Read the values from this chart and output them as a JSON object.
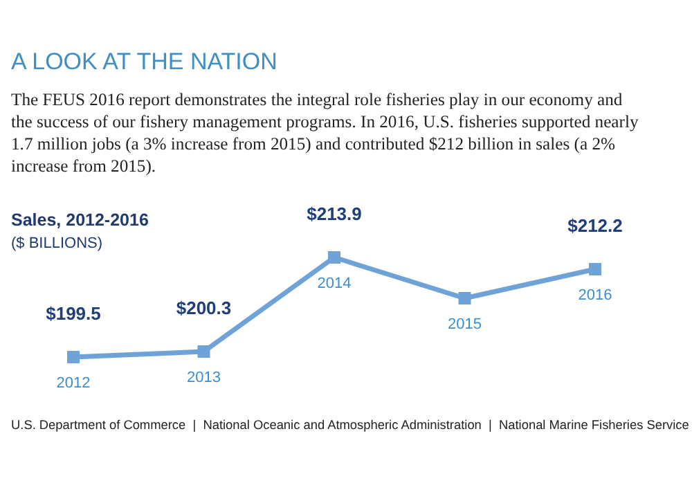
{
  "chart_data": {
    "type": "line",
    "title": "A LOOK AT THE NATION",
    "subtitle": "The FEUS 2016 report demonstrates the integral role fisheries play in our economy and the success of our fishery management programs. In 2016, U.S. fisheries supported nearly 1.7 million jobs (a 3% increase from 2015) and contributed $212 billion in sales (a 2% increase from 2015).",
    "ylabel": "Sales, 2012-2016 ($ BILLIONS)",
    "categories": [
      "2012",
      "2013",
      "2014",
      "2015",
      "2016"
    ],
    "series": [
      {
        "color": "#6fa3d8",
        "values": [
          199.5,
          200.3,
          213.9,
          208,
          212.2
        ],
        "value_labels": [
          "$199.5",
          "$200.3",
          "$213.9",
          null,
          "$212.2"
        ]
      }
    ],
    "marker": "square",
    "annotations": [
      "U.S. Department of Commerce  |  National Oceanic and Atmospheric Administration  |  National Marine Fisheries Service"
    ]
  }
}
